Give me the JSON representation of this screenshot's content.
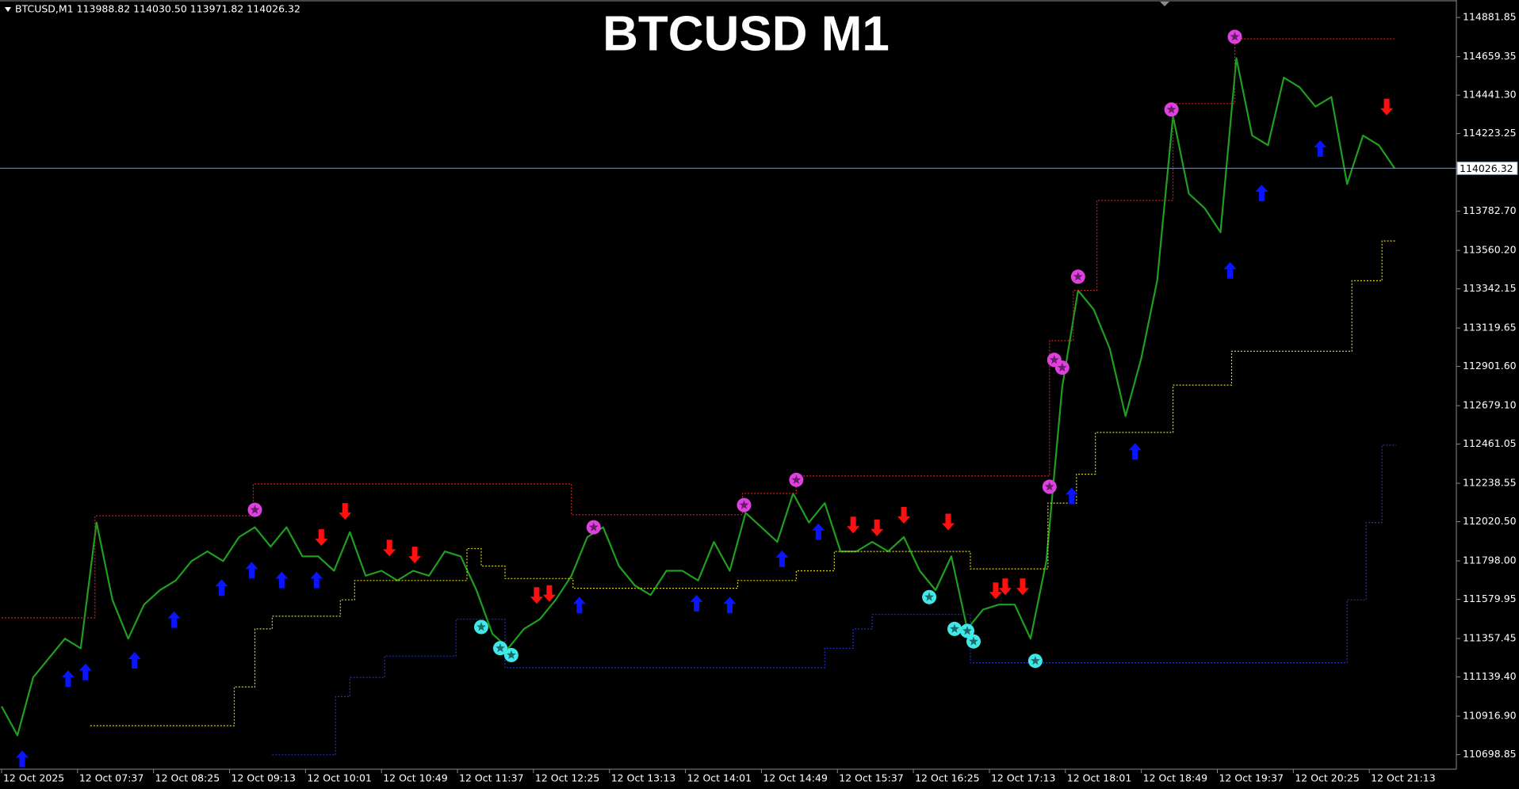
{
  "chart_data": {
    "type": "line",
    "title": "BTCUSD M1",
    "subtitle": "BTCUSD,M1  113988.82 114030.50 113971.82 114026.32",
    "current_price": 114026.32,
    "xlim": [
      -1,
      919
    ],
    "ylim": [
      110616,
      114970
    ],
    "xticks": [
      {
        "value": 0,
        "label": "12 Oct 2025"
      },
      {
        "value": 48,
        "label": "12 Oct 07:37"
      },
      {
        "value": 96,
        "label": "12 Oct 08:25"
      },
      {
        "value": 144,
        "label": "12 Oct 09:13"
      },
      {
        "value": 192,
        "label": "12 Oct 10:01"
      },
      {
        "value": 240,
        "label": "12 Oct 10:49"
      },
      {
        "value": 288,
        "label": "12 Oct 11:37"
      },
      {
        "value": 336,
        "label": "12 Oct 12:25"
      },
      {
        "value": 384,
        "label": "12 Oct 13:13"
      },
      {
        "value": 432,
        "label": "12 Oct 14:01"
      },
      {
        "value": 480,
        "label": "12 Oct 14:49"
      },
      {
        "value": 528,
        "label": "12 Oct 15:37"
      },
      {
        "value": 576,
        "label": "12 Oct 16:25"
      },
      {
        "value": 624,
        "label": "12 Oct 17:13"
      },
      {
        "value": 672,
        "label": "12 Oct 18:01"
      },
      {
        "value": 720,
        "label": "12 Oct 18:49"
      },
      {
        "value": 768,
        "label": "12 Oct 19:37"
      },
      {
        "value": 816,
        "label": "12 Oct 20:25"
      },
      {
        "value": 864,
        "label": "12 Oct 21:13"
      }
    ],
    "yticks": [
      114881.85,
      114659.35,
      {
        "value": 114441.3,
        "label": "114441.30"
      },
      114223.25,
      {
        "value": 113782.7,
        "label": "113782.70"
      },
      {
        "value": 113560.2,
        "label": "113560.20"
      },
      113342.15,
      113119.65,
      {
        "value": 112901.6,
        "label": "112901.60"
      },
      {
        "value": 112679.1,
        "label": "112679.10"
      },
      112461.05,
      112238.55,
      {
        "value": 112020.5,
        "label": "112020.50"
      },
      {
        "value": 111798,
        "label": "111798.00"
      },
      111579.95,
      111357.45,
      {
        "value": 111139.4,
        "label": "111139.40"
      },
      {
        "value": 110916.9,
        "label": "110916.90"
      },
      110698.85
    ],
    "series": [
      {
        "style": "line",
        "color": "#1f9e1f",
        "x": [
          0,
          10,
          20,
          30,
          40,
          50,
          60,
          70,
          80,
          90,
          100,
          110,
          120,
          130,
          140,
          150,
          160,
          170,
          180,
          190,
          200,
          210,
          220,
          230,
          240,
          250,
          260,
          270,
          280,
          290,
          300,
          310,
          320,
          330,
          340,
          350,
          360,
          370,
          380,
          390,
          400,
          410,
          420,
          430,
          440,
          450,
          460,
          470,
          480,
          490,
          500,
          510,
          520,
          530,
          540,
          550,
          560,
          570,
          580,
          590,
          600,
          610,
          620,
          630,
          640,
          650,
          660,
          670,
          680,
          690,
          700,
          710,
          720,
          730,
          740,
          750,
          760,
          770,
          780,
          790,
          800,
          810,
          820,
          830,
          840,
          850,
          860,
          870,
          880
        ],
        "values": [
          110973,
          110808,
          111137,
          111247,
          111357,
          111302,
          112016,
          111577,
          111357,
          111550,
          111632,
          111687,
          111797,
          111852,
          111797,
          111933,
          111989,
          111879,
          111989,
          111824,
          111824,
          111742,
          111961,
          111714,
          111742,
          111687,
          111742,
          111714,
          111852,
          111824,
          111632,
          111385,
          111302,
          111412,
          111467,
          111577,
          111714,
          111933,
          111989,
          111769,
          111659,
          111604,
          111742,
          111742,
          111687,
          111906,
          111742,
          112071,
          111989,
          111906,
          112181,
          112016,
          112126,
          111852,
          111852,
          111906,
          111852,
          111933,
          111742,
          111632,
          111824,
          111412,
          111522,
          111550,
          111550,
          111357,
          111797,
          112784,
          113333,
          113224,
          113004,
          112620,
          112949,
          113388,
          114322,
          113882,
          113800,
          113663,
          114651,
          114212,
          114157,
          114541,
          114486,
          114376,
          114431,
          113937,
          114212,
          114157,
          114026
        ]
      },
      {
        "style": "step",
        "color": "#d02020",
        "x": [
          0,
          59,
          159,
          360,
          468,
          502,
          662,
          677,
          692,
          740,
          779,
          880
        ],
        "values": [
          111475,
          112054,
          112235,
          112060,
          112181,
          112280,
          113048,
          113333,
          113844,
          114393,
          114761,
          114761
        ]
      },
      {
        "style": "step",
        "color": "#d8d020",
        "x": [
          56,
          147,
          160,
          171,
          214,
          223,
          294,
          303,
          318,
          361,
          465,
          502,
          526,
          612,
          661,
          679,
          691,
          740,
          777,
          853,
          872,
          881
        ],
        "values": [
          110863,
          111083,
          111412,
          111484,
          111577,
          111687,
          111868,
          111769,
          111698,
          111643,
          111687,
          111742,
          111852,
          111753,
          112126,
          112290,
          112527,
          112796,
          112988,
          113388,
          113614,
          113614
        ]
      },
      {
        "style": "step",
        "color": "#2030c0",
        "x": [
          171,
          211,
          220,
          242,
          287,
          318,
          520,
          538,
          550,
          612,
          850,
          862,
          872,
          881
        ],
        "values": [
          110698,
          111028,
          111137,
          111258,
          111467,
          111192,
          111302,
          111412,
          111494,
          111220,
          111577,
          112016,
          112455,
          112455
        ]
      },
      {
        "style": "up",
        "color": "#0a14ff",
        "x": [
          13,
          42,
          53,
          84,
          109,
          139,
          158,
          177,
          199,
          365,
          439,
          460,
          493,
          516,
          676,
          716,
          776,
          796,
          833
        ],
        "values": [
          110726,
          111182,
          111220,
          111286,
          111517,
          111698,
          111797,
          111742,
          111742,
          111599,
          111610,
          111599,
          111862,
          112016,
          112219,
          112472,
          113499,
          113938,
          114190
        ]
      },
      {
        "style": "down",
        "color": "#ff1010",
        "x": [
          202,
          217,
          245,
          261,
          338,
          346,
          538,
          553,
          570,
          598,
          628,
          634,
          645,
          875
        ],
        "values": [
          111879,
          112027,
          111819,
          111780,
          111550,
          111561,
          111950,
          111934,
          112005,
          111967,
          111577,
          111599,
          111599,
          114322
        ]
      },
      {
        "style": "star",
        "color": "#e040e0",
        "x": [
          160,
          374,
          469,
          502,
          662,
          665,
          670,
          680,
          739,
          779
        ],
        "values": [
          112088,
          111989,
          112115,
          112258,
          112219,
          112939,
          112895,
          113411,
          114360,
          114772
        ]
      },
      {
        "style": "star",
        "color": "#40e8e8",
        "x": [
          303,
          315,
          322,
          586,
          602,
          610,
          614,
          653
        ],
        "values": [
          111423,
          111303,
          111264,
          111593,
          111412,
          111401,
          111341,
          111231
        ]
      }
    ]
  }
}
